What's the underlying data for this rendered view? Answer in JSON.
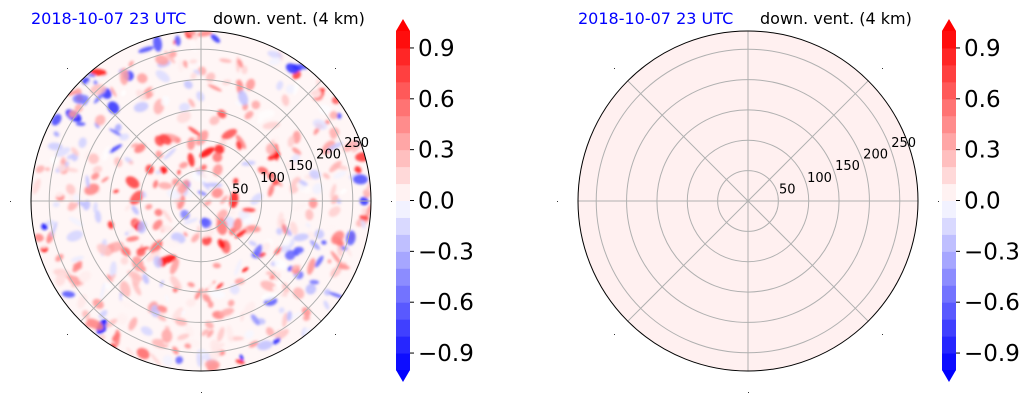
{
  "chart_data": [
    {
      "type": "polar-heatmap",
      "title_time": "2018-10-07 23 UTC",
      "title_var": "down. vent. (4 km)",
      "radial_ticks": [
        "50",
        "100",
        "150",
        "200",
        "250"
      ],
      "radial_values": [
        50,
        100,
        150,
        200,
        250
      ],
      "r_max": 280,
      "angular_gridlines_deg": [
        0,
        45,
        90,
        135,
        180,
        225,
        270,
        315
      ],
      "grid": true,
      "field": "mixed positive/negative",
      "colorbar": {
        "range": [
          -1.0,
          1.0
        ],
        "extend": "both",
        "ticks": [
          "0.9",
          "0.6",
          "0.3",
          "0.0",
          "−0.3",
          "−0.6",
          "−0.9"
        ],
        "tick_values": [
          0.9,
          0.6,
          0.3,
          0.0,
          -0.3,
          -0.6,
          -0.9
        ],
        "colormap": "bwr",
        "neg_color": "#0000ff",
        "zero_color": "#ffffff",
        "pos_color": "#ff0000"
      }
    },
    {
      "type": "polar-heatmap",
      "title_time": "2018-10-07 23 UTC",
      "title_var": "down. vent. (4 km)",
      "radial_ticks": [
        "50",
        "100",
        "150",
        "200",
        "250"
      ],
      "radial_values": [
        50,
        100,
        150,
        200,
        250
      ],
      "r_max": 280,
      "angular_gridlines_deg": [
        0,
        45,
        90,
        135,
        180,
        225,
        270,
        315
      ],
      "grid": true,
      "field": "uniform near zero",
      "fill_color": "#fff0f0",
      "colorbar": {
        "range": [
          -1.0,
          1.0
        ],
        "extend": "both",
        "ticks": [
          "0.9",
          "0.6",
          "0.3",
          "0.0",
          "−0.3",
          "−0.6",
          "−0.9"
        ],
        "tick_values": [
          0.9,
          0.6,
          0.3,
          0.0,
          -0.3,
          -0.6,
          -0.9
        ],
        "colormap": "bwr",
        "neg_color": "#0000ff",
        "zero_color": "#ffffff",
        "pos_color": "#ff0000"
      }
    }
  ]
}
